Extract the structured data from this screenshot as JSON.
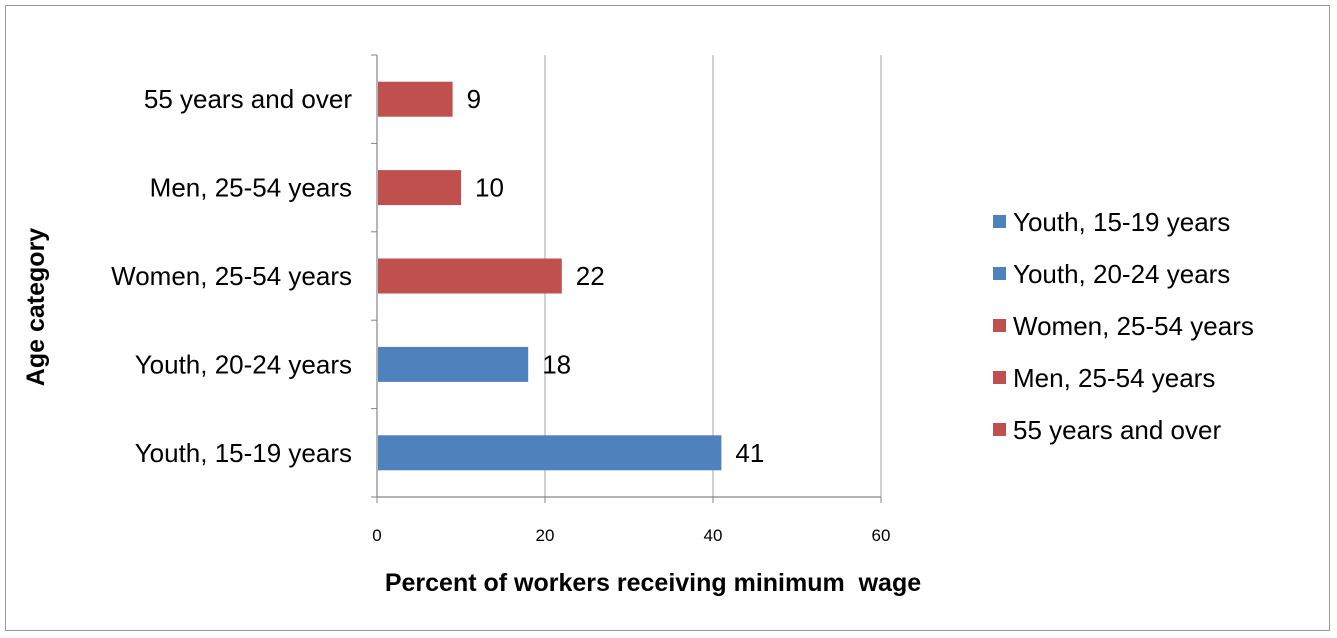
{
  "chart_data": {
    "type": "bar",
    "orientation": "horizontal",
    "categories": [
      "Youth, 15-19 years",
      "Youth, 20-24 years",
      "Women, 25-54 years",
      "Men, 25-54 years",
      "55 years and over"
    ],
    "values": [
      41,
      18,
      22,
      10,
      9
    ],
    "bar_colors": [
      "#4f81bd",
      "#4f81bd",
      "#c0504d",
      "#c0504d",
      "#c0504d"
    ],
    "xlabel": "Percent of workers receiving minimum  wage",
    "ylabel": "Age category",
    "xlim": [
      0,
      60
    ],
    "xticks": [
      0,
      20,
      40,
      60
    ],
    "grid": "vertical",
    "legend_position": "right",
    "legend": [
      {
        "label": "Youth, 15-19 years",
        "color": "#4f81bd"
      },
      {
        "label": "Youth, 20-24 years",
        "color": "#4f81bd"
      },
      {
        "label": "Women, 25-54 years",
        "color": "#c0504d"
      },
      {
        "label": "Men, 25-54 years",
        "color": "#c0504d"
      },
      {
        "label": "55 years and over",
        "color": "#c0504d"
      }
    ]
  }
}
